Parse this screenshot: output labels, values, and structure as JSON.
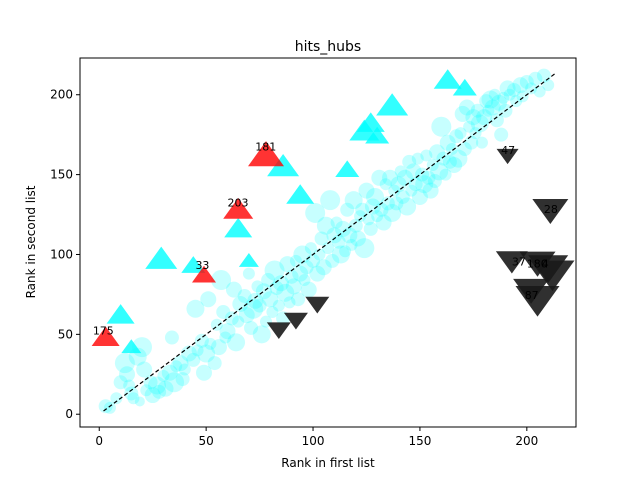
{
  "chart_data": {
    "type": "scatter",
    "title": "hits_hubs",
    "xlabel": "Rank in first list",
    "ylabel": "Rank in second list",
    "xlim": [
      -9,
      223
    ],
    "ylim": [
      -8,
      223
    ],
    "xticks": [
      0,
      50,
      100,
      150,
      200
    ],
    "yticks": [
      0,
      50,
      100,
      150,
      200
    ],
    "grid": false,
    "diagonal": {
      "from": [
        2,
        2
      ],
      "to": [
        213,
        213
      ],
      "style": "dashed",
      "color": "#000000"
    },
    "colors": {
      "circle": "#00ffff",
      "triangle_up": "#00ffff",
      "highlight": "#ff0000",
      "triangle_down": "#1a1a1a"
    },
    "circles": [
      [
        3,
        5,
        7
      ],
      [
        5,
        4,
        6
      ],
      [
        8,
        10,
        6
      ],
      [
        10,
        20,
        7
      ],
      [
        12,
        32,
        10
      ],
      [
        13,
        25,
        8
      ],
      [
        14,
        18,
        6
      ],
      [
        15,
        13,
        7
      ],
      [
        16,
        10,
        6
      ],
      [
        18,
        36,
        9
      ],
      [
        19,
        8,
        5
      ],
      [
        20,
        42,
        10
      ],
      [
        21,
        28,
        8
      ],
      [
        22,
        15,
        6
      ],
      [
        24,
        20,
        7
      ],
      [
        25,
        12,
        8
      ],
      [
        27,
        18,
        9
      ],
      [
        28,
        14,
        7
      ],
      [
        30,
        24,
        6
      ],
      [
        31,
        16,
        8
      ],
      [
        33,
        26,
        8
      ],
      [
        34,
        48,
        7
      ],
      [
        35,
        20,
        10
      ],
      [
        36,
        30,
        6
      ],
      [
        38,
        32,
        8
      ],
      [
        39,
        22,
        7
      ],
      [
        40,
        28,
        6
      ],
      [
        42,
        38,
        8
      ],
      [
        44,
        34,
        7
      ],
      [
        45,
        66,
        9
      ],
      [
        46,
        40,
        6
      ],
      [
        48,
        46,
        7
      ],
      [
        49,
        26,
        8
      ],
      [
        50,
        38,
        9
      ],
      [
        51,
        72,
        8
      ],
      [
        52,
        44,
        6
      ],
      [
        54,
        32,
        7
      ],
      [
        55,
        56,
        6
      ],
      [
        56,
        42,
        8
      ],
      [
        57,
        84,
        10
      ],
      [
        58,
        64,
        7
      ],
      [
        59,
        48,
        6
      ],
      [
        60,
        52,
        8
      ],
      [
        62,
        60,
        7
      ],
      [
        63,
        78,
        8
      ],
      [
        64,
        45,
        9
      ],
      [
        65,
        58,
        6
      ],
      [
        66,
        69,
        8
      ],
      [
        68,
        74,
        7
      ],
      [
        69,
        62,
        8
      ],
      [
        70,
        88,
        6
      ],
      [
        71,
        54,
        7
      ],
      [
        72,
        66,
        10
      ],
      [
        73,
        71,
        8
      ],
      [
        74,
        80,
        6
      ],
      [
        75,
        68,
        7
      ],
      [
        76,
        50,
        9
      ],
      [
        77,
        77,
        8
      ],
      [
        78,
        58,
        6
      ],
      [
        79,
        84,
        7
      ],
      [
        80,
        72,
        8
      ],
      [
        81,
        64,
        6
      ],
      [
        82,
        90,
        10
      ],
      [
        83,
        79,
        7
      ],
      [
        84,
        68,
        6
      ],
      [
        85,
        82,
        8
      ],
      [
        86,
        60,
        7
      ],
      [
        87,
        76,
        9
      ],
      [
        88,
        94,
        8
      ],
      [
        89,
        70,
        6
      ],
      [
        90,
        86,
        7
      ],
      [
        91,
        80,
        8
      ],
      [
        92,
        96,
        6
      ],
      [
        93,
        72,
        7
      ],
      [
        94,
        88,
        8
      ],
      [
        95,
        100,
        9
      ],
      [
        96,
        84,
        6
      ],
      [
        97,
        92,
        7
      ],
      [
        98,
        78,
        8
      ],
      [
        99,
        104,
        6
      ],
      [
        100,
        96,
        7
      ],
      [
        101,
        126,
        10
      ],
      [
        102,
        88,
        8
      ],
      [
        103,
        100,
        6
      ],
      [
        104,
        110,
        7
      ],
      [
        105,
        92,
        8
      ],
      [
        106,
        118,
        9
      ],
      [
        107,
        104,
        6
      ],
      [
        108,
        134,
        10
      ],
      [
        109,
        96,
        7
      ],
      [
        110,
        112,
        8
      ],
      [
        111,
        120,
        6
      ],
      [
        112,
        108,
        7
      ],
      [
        113,
        100,
        9
      ],
      [
        114,
        116,
        8
      ],
      [
        115,
        102,
        6
      ],
      [
        116,
        128,
        7
      ],
      [
        117,
        112,
        8
      ],
      [
        118,
        106,
        6
      ],
      [
        119,
        134,
        9
      ],
      [
        120,
        118,
        7
      ],
      [
        121,
        110,
        8
      ],
      [
        122,
        124,
        6
      ],
      [
        123,
        128,
        7
      ],
      [
        124,
        104,
        10
      ],
      [
        125,
        140,
        8
      ],
      [
        126,
        122,
        6
      ],
      [
        127,
        116,
        7
      ],
      [
        128,
        130,
        8
      ],
      [
        129,
        136,
        9
      ],
      [
        130,
        124,
        6
      ],
      [
        131,
        148,
        8
      ],
      [
        132,
        128,
        7
      ],
      [
        133,
        120,
        8
      ],
      [
        134,
        144,
        6
      ],
      [
        135,
        132,
        7
      ],
      [
        136,
        148,
        8
      ],
      [
        137,
        126,
        9
      ],
      [
        138,
        140,
        6
      ],
      [
        139,
        132,
        7
      ],
      [
        140,
        144,
        8
      ],
      [
        141,
        152,
        6
      ],
      [
        142,
        136,
        7
      ],
      [
        143,
        148,
        8
      ],
      [
        144,
        130,
        9
      ],
      [
        145,
        158,
        7
      ],
      [
        146,
        140,
        6
      ],
      [
        147,
        152,
        8
      ],
      [
        148,
        144,
        7
      ],
      [
        149,
        160,
        6
      ],
      [
        150,
        136,
        8
      ],
      [
        151,
        150,
        7
      ],
      [
        152,
        144,
        9
      ],
      [
        153,
        162,
        6
      ],
      [
        154,
        148,
        7
      ],
      [
        155,
        140,
        8
      ],
      [
        156,
        156,
        6
      ],
      [
        157,
        146,
        7
      ],
      [
        158,
        164,
        8
      ],
      [
        159,
        152,
        9
      ],
      [
        160,
        180,
        10
      ],
      [
        161,
        160,
        7
      ],
      [
        162,
        150,
        6
      ],
      [
        163,
        170,
        8
      ],
      [
        164,
        158,
        7
      ],
      [
        165,
        166,
        6
      ],
      [
        166,
        156,
        8
      ],
      [
        167,
        174,
        7
      ],
      [
        168,
        160,
        9
      ],
      [
        169,
        176,
        6
      ],
      [
        170,
        188,
        8
      ],
      [
        171,
        166,
        7
      ],
      [
        172,
        192,
        8
      ],
      [
        173,
        180,
        6
      ],
      [
        174,
        170,
        7
      ],
      [
        175,
        186,
        8
      ],
      [
        176,
        176,
        6
      ],
      [
        177,
        190,
        7
      ],
      [
        178,
        182,
        9
      ],
      [
        179,
        170,
        6
      ],
      [
        180,
        186,
        8
      ],
      [
        181,
        196,
        7
      ],
      [
        182,
        190,
        6
      ],
      [
        183,
        197,
        9
      ],
      [
        184,
        192,
        8
      ],
      [
        185,
        200,
        6
      ],
      [
        186,
        184,
        7
      ],
      [
        187,
        195,
        8
      ],
      [
        188,
        175,
        7
      ],
      [
        189,
        198,
        6
      ],
      [
        190,
        190,
        7
      ],
      [
        191,
        204,
        8
      ],
      [
        192,
        200,
        6
      ],
      [
        194,
        203,
        7
      ],
      [
        195,
        196,
        6
      ],
      [
        197,
        206,
        8
      ],
      [
        198,
        199,
        6
      ],
      [
        200,
        208,
        7
      ],
      [
        202,
        204,
        6
      ],
      [
        204,
        210,
        7
      ],
      [
        206,
        202,
        6
      ],
      [
        208,
        212,
        7
      ],
      [
        210,
        206,
        6
      ]
    ],
    "triangles_up": [
      [
        10,
        62,
        14
      ],
      [
        15,
        42,
        10
      ],
      [
        29,
        97,
        16
      ],
      [
        44,
        93,
        12
      ],
      [
        65,
        116,
        14
      ],
      [
        70,
        96,
        10
      ],
      [
        86,
        155,
        16
      ],
      [
        94,
        137,
        14
      ],
      [
        116,
        153,
        12
      ],
      [
        124,
        177,
        15
      ],
      [
        127,
        182,
        14
      ],
      [
        130,
        174,
        12
      ],
      [
        137,
        193,
        16
      ],
      [
        163,
        209,
        14
      ],
      [
        171,
        204,
        12
      ]
    ],
    "triangles_down": [
      [
        84,
        53,
        12
      ],
      [
        92,
        59,
        12
      ],
      [
        102,
        69,
        12
      ],
      [
        191,
        162,
        11
      ],
      [
        211,
        128,
        18
      ],
      [
        193,
        96,
        16
      ],
      [
        205,
        95,
        18
      ],
      [
        210,
        92,
        20
      ],
      [
        212,
        88,
        22
      ],
      [
        202,
        78,
        18
      ],
      [
        205,
        72,
        22
      ]
    ],
    "highlights": [
      [
        3,
        48,
        14
      ],
      [
        49,
        87,
        12
      ],
      [
        65,
        128,
        15
      ],
      [
        78,
        162,
        18
      ]
    ],
    "annotations": [
      {
        "label": "175",
        "x": -3,
        "y": 50
      },
      {
        "label": "33",
        "x": 45,
        "y": 91
      },
      {
        "label": "203",
        "x": 60,
        "y": 130
      },
      {
        "label": "181",
        "x": 73,
        "y": 165
      },
      {
        "label": "47",
        "x": 188,
        "y": 163
      },
      {
        "label": "28",
        "x": 208,
        "y": 126
      },
      {
        "label": "37",
        "x": 193,
        "y": 93
      },
      {
        "label": "180",
        "x": 200,
        "y": 92
      },
      {
        "label": "4",
        "x": 207,
        "y": 92
      },
      {
        "label": "87",
        "x": 199,
        "y": 72
      }
    ]
  }
}
